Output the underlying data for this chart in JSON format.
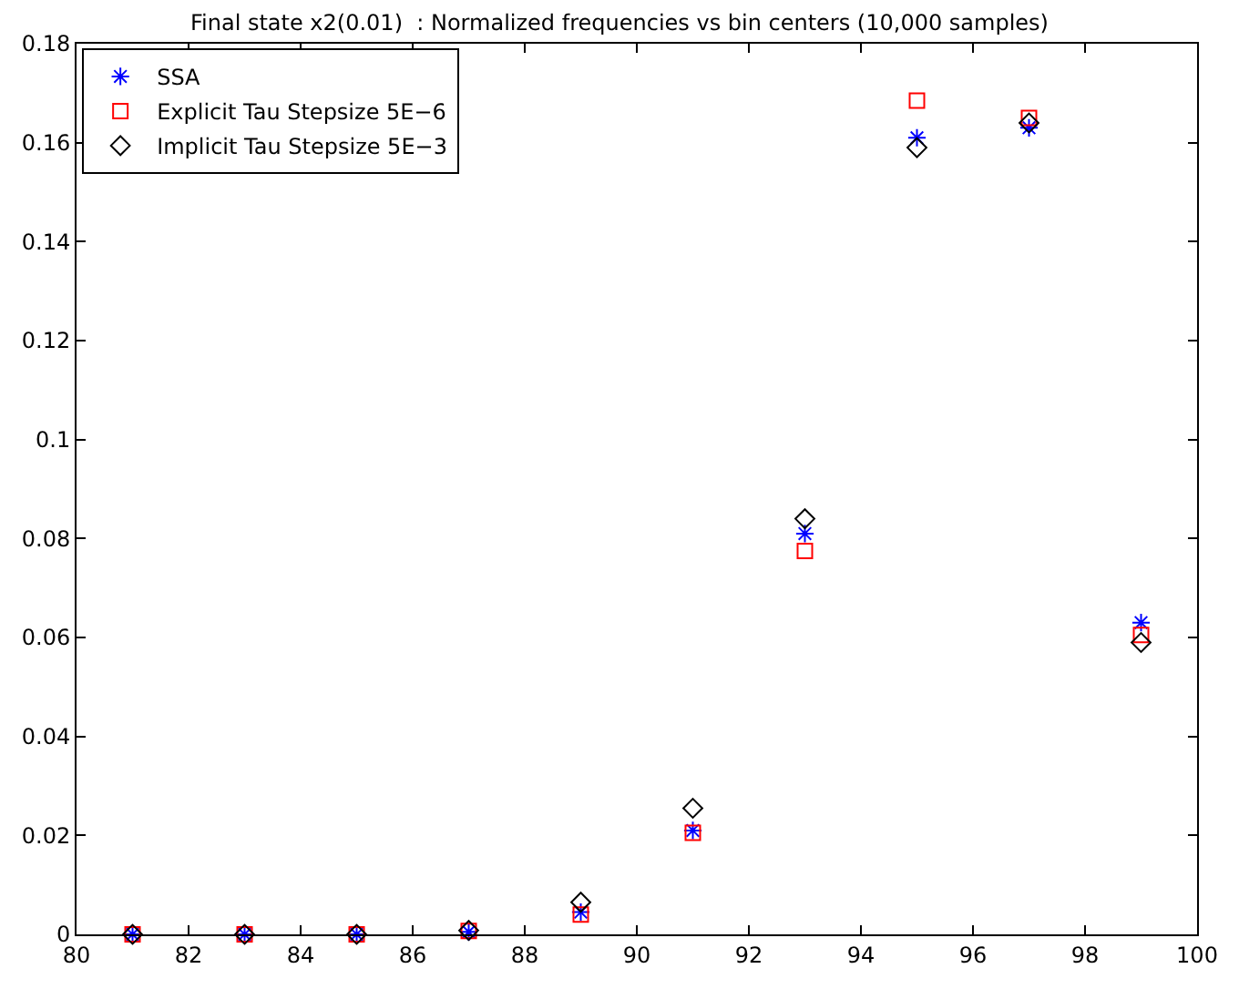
{
  "chart_data": {
    "type": "scatter",
    "title": "Final state x2(0.01)  : Normalized frequencies vs bin centers (10,000 samples)",
    "x": [
      81,
      83,
      85,
      87,
      89,
      91,
      93,
      95,
      97,
      99
    ],
    "series": [
      {
        "name": "SSA",
        "color": "#0000ff",
        "marker": "cross",
        "values": [
          0,
          0,
          0,
          0.0005,
          0.0045,
          0.021,
          0.081,
          0.161,
          0.163,
          0.063
        ]
      },
      {
        "name": "Explicit Tau Stepsize 5E−6",
        "color": "#ff0000",
        "marker": "square",
        "values": [
          0,
          0,
          0,
          0.0007,
          0.004,
          0.0205,
          0.0775,
          0.1685,
          0.165,
          0.0605
        ]
      },
      {
        "name": "Implicit Tau Stepsize 5E−3",
        "color": "#000000",
        "marker": "diamond",
        "values": [
          0,
          0,
          0,
          0.0008,
          0.0065,
          0.0255,
          0.084,
          0.159,
          0.164,
          0.059
        ]
      }
    ],
    "xlim": [
      80,
      100
    ],
    "xticks": [
      80,
      82,
      84,
      86,
      88,
      90,
      92,
      94,
      96,
      98,
      100
    ],
    "ylim": [
      0,
      0.18
    ],
    "yticks": [
      0,
      0.02,
      0.04,
      0.06,
      0.08,
      0.1,
      0.12,
      0.14,
      0.16,
      0.18
    ],
    "legend": "top left"
  }
}
